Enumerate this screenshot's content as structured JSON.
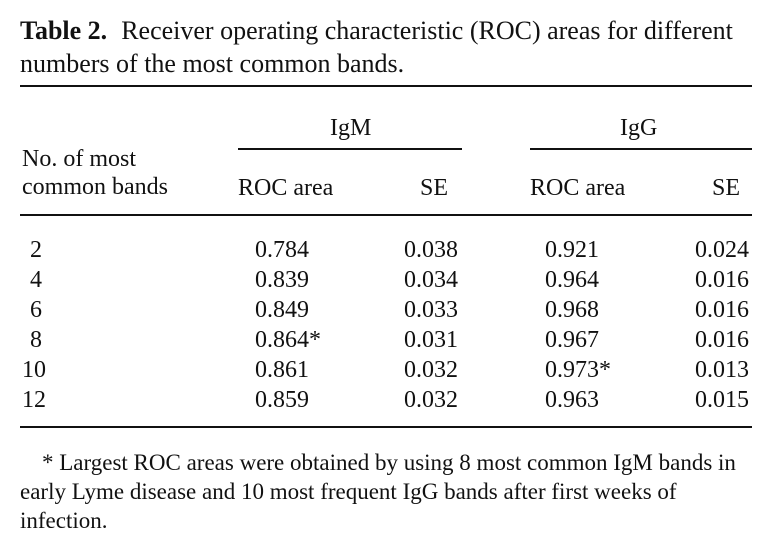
{
  "caption": {
    "label": "Table 2.",
    "text": "Receiver operating characteristic (ROC) areas for different numbers of the most common bands."
  },
  "table": {
    "row_header": "No. of most common bands",
    "groups": [
      "IgM",
      "IgG"
    ],
    "subheaders": [
      "ROC area",
      "SE",
      "ROC area",
      "SE"
    ],
    "rows": [
      [
        "2",
        "0.784",
        "0.038",
        "0.921",
        "0.024"
      ],
      [
        "4",
        "0.839",
        "0.034",
        "0.964",
        "0.016"
      ],
      [
        "6",
        "0.849",
        "0.033",
        "0.968",
        "0.016"
      ],
      [
        "8",
        "0.864*",
        "0.031",
        "0.967",
        "0.016"
      ],
      [
        "10",
        "0.861",
        "0.032",
        "0.973*",
        "0.013"
      ],
      [
        "12",
        "0.859",
        "0.032",
        "0.963",
        "0.015"
      ]
    ]
  },
  "footnote": "* Largest ROC areas were obtained by using 8 most common IgM bands in early Lyme disease and 10 most frequent IgG bands after first weeks of infection."
}
